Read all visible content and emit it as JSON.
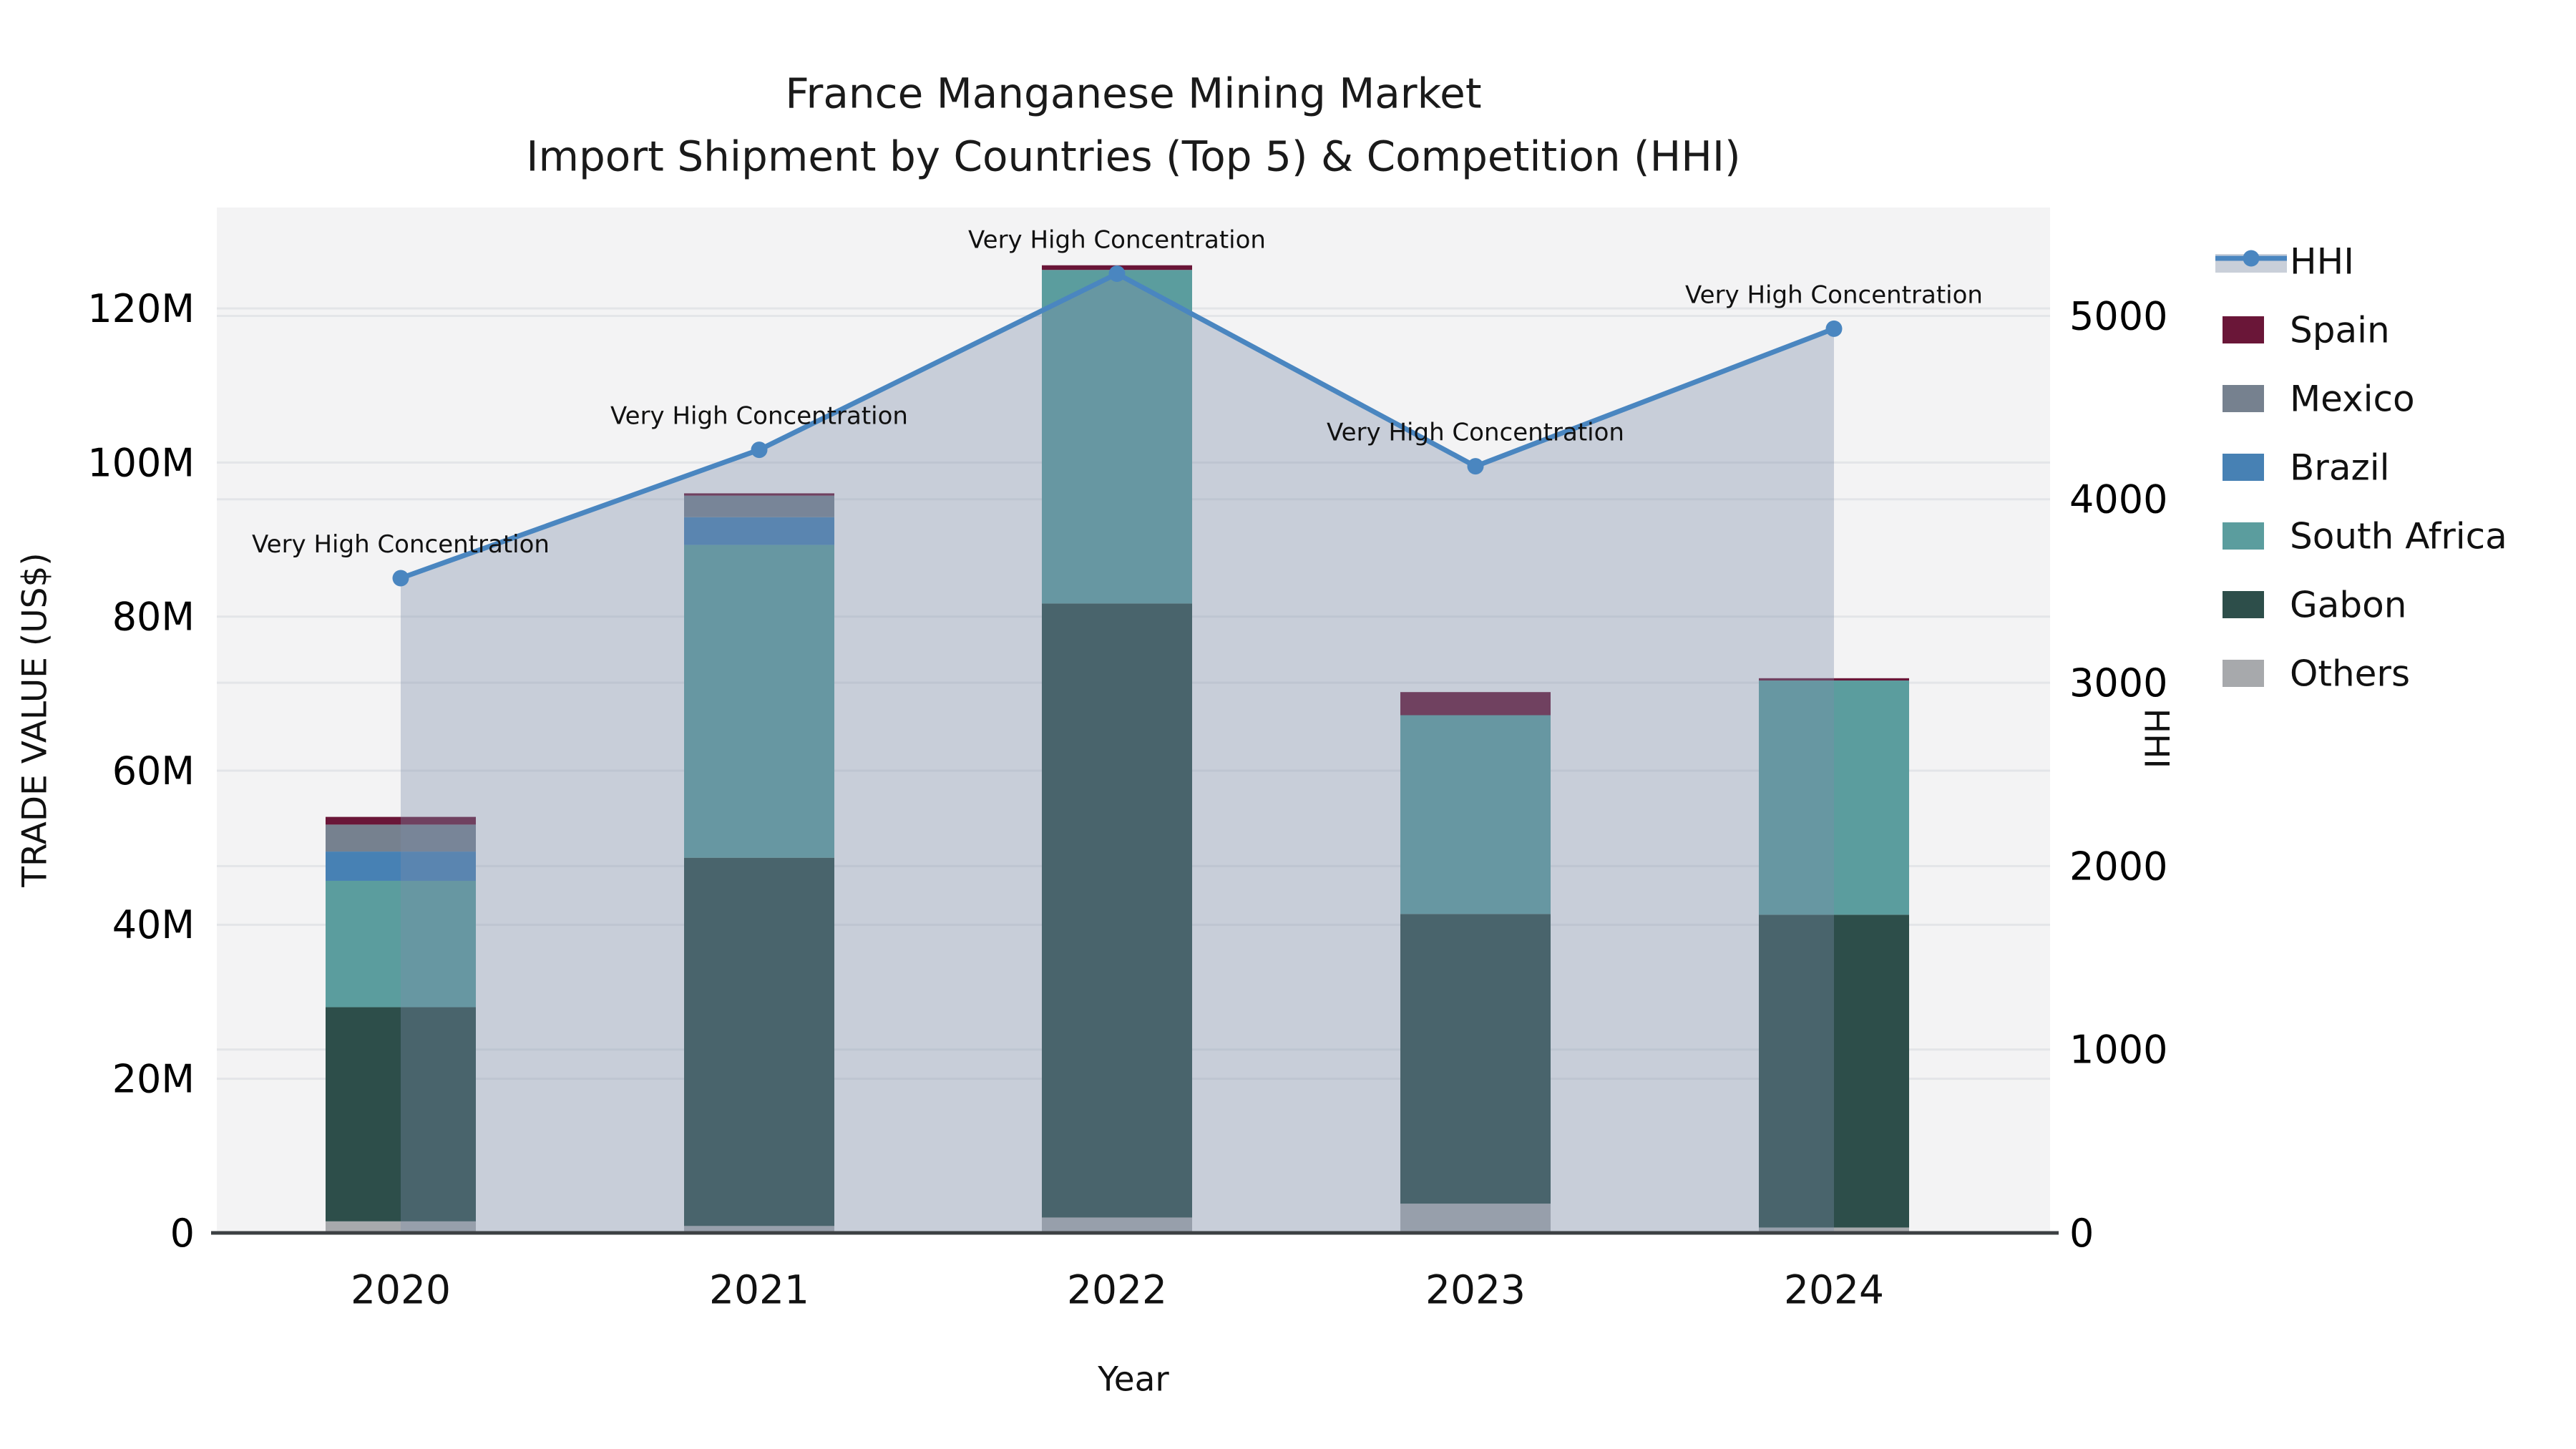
{
  "title": {
    "line1": "France Manganese Mining Market",
    "line2": "Import Shipment by Countries (Top 5) & Competition (HHI)"
  },
  "axes": {
    "left": {
      "title": "TRADE VALUE (US$)",
      "tick_labels": [
        "0",
        "20M",
        "40M",
        "60M",
        "80M",
        "100M",
        "120M"
      ],
      "tick_values": [
        0,
        20,
        40,
        60,
        80,
        100,
        120
      ],
      "max": 133.1
    },
    "right": {
      "title": "HHI",
      "tick_labels": [
        "0",
        "1000",
        "2000",
        "3000",
        "4000",
        "5000"
      ],
      "tick_values": [
        0,
        1000,
        2000,
        3000,
        4000,
        5000
      ],
      "max": 5591
    },
    "x": {
      "title": "Year"
    }
  },
  "colors": {
    "plot_bg": "#f3f3f4",
    "gridline": "#e3e5e8",
    "axis_line": "#3c4043",
    "hhi_line": "#4a86c0",
    "hhi_area_fill": "rgba(126,140,168,0.36)",
    "hhi_legend_band": "#c9cfd9"
  },
  "chart_data": {
    "type": "bar",
    "subtype": "stacked-bars-with-line-overlay",
    "categories": [
      "2020",
      "2021",
      "2022",
      "2023",
      "2024"
    ],
    "xlabel": "Year",
    "ylabel_left": "TRADE VALUE (US$)",
    "ylabel_right": "HHI",
    "ylim_left": [
      0,
      133.1
    ],
    "ylim_right": [
      0,
      5591
    ],
    "grid": true,
    "legend_position": "right",
    "units": "millions of US$",
    "series": [
      {
        "name": "Spain",
        "type": "bar",
        "color": "#6a1638",
        "values": [
          1.0,
          0.3,
          0.6,
          3.0,
          0.3
        ]
      },
      {
        "name": "Mexico",
        "type": "bar",
        "color": "#76818f",
        "values": [
          3.5,
          2.8,
          0,
          0,
          0
        ]
      },
      {
        "name": "Brazil",
        "type": "bar",
        "color": "#4781b4",
        "values": [
          3.8,
          3.6,
          0,
          0,
          0
        ]
      },
      {
        "name": "South Africa",
        "type": "bar",
        "color": "#5b9d9e",
        "values": [
          16.4,
          40.6,
          43.3,
          25.8,
          30.4
        ]
      },
      {
        "name": "Gabon",
        "type": "bar",
        "color": "#2d4e4a",
        "values": [
          27.8,
          47.8,
          79.7,
          37.6,
          40.6
        ]
      },
      {
        "name": "Others",
        "type": "bar",
        "color": "#a7a9ac",
        "values": [
          1.5,
          0.9,
          2.0,
          3.8,
          0.7
        ]
      }
    ],
    "stack_order_bottom_to_top": [
      "Others",
      "Gabon",
      "South Africa",
      "Brazil",
      "Mexico",
      "Spain"
    ],
    "bar_totals": [
      54.0,
      96.0,
      125.6,
      70.2,
      72.0
    ],
    "line_series": {
      "name": "HHI",
      "axis": "right",
      "color": "#4a86c0",
      "area_fill": "rgba(126,140,168,0.36)",
      "values": [
        3570,
        4270,
        5230,
        4180,
        4930
      ]
    },
    "annotations": [
      {
        "x": "2020",
        "text": "Very High Concentration"
      },
      {
        "x": "2021",
        "text": "Very High Concentration"
      },
      {
        "x": "2022",
        "text": "Very High Concentration"
      },
      {
        "x": "2023",
        "text": "Very High Concentration"
      },
      {
        "x": "2024",
        "text": "Very High Concentration"
      }
    ]
  },
  "legend": {
    "items": [
      {
        "label": "HHI",
        "type": "line"
      },
      {
        "label": "Spain",
        "type": "swatch",
        "color": "#6a1638"
      },
      {
        "label": "Mexico",
        "type": "swatch",
        "color": "#76818f"
      },
      {
        "label": "Brazil",
        "type": "swatch",
        "color": "#4781b4"
      },
      {
        "label": "South Africa",
        "type": "swatch",
        "color": "#5b9d9e"
      },
      {
        "label": "Gabon",
        "type": "swatch",
        "color": "#2d4e4a"
      },
      {
        "label": "Others",
        "type": "swatch",
        "color": "#a7a9ac"
      }
    ]
  }
}
